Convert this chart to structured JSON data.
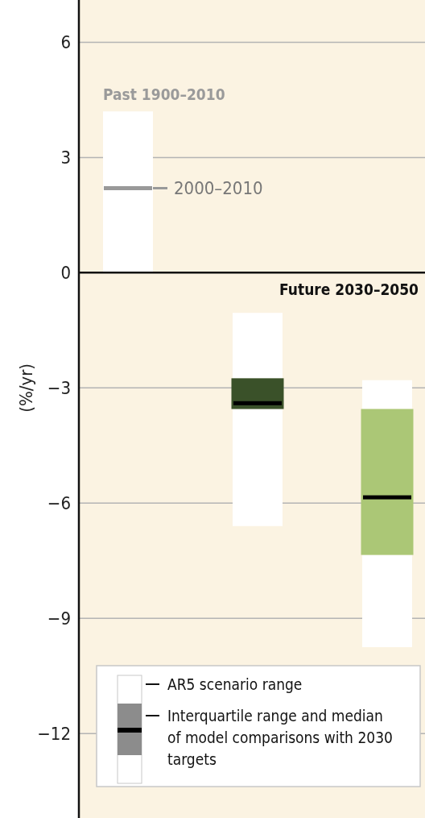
{
  "chart_data": {
    "type": "box",
    "ylabel": "(%/yr)",
    "categories": [
      null,
      null,
      null
    ],
    "boxes": [
      {
        "low": 0,
        "q1": 2.2,
        "median": 2.2,
        "q3": 2.2,
        "high": 4.2
      },
      {
        "low": -6.6,
        "q1": -3.55,
        "median": -3.4,
        "q3": -2.75,
        "high": -1.05
      },
      {
        "low": -9.75,
        "q1": -7.35,
        "median": -5.85,
        "q3": -3.55,
        "high": -2.8
      }
    ],
    "colors": [
      "#999999",
      "#3a5129",
      "#abc776"
    ],
    "ylim": [
      -14.2,
      7.1
    ],
    "yticks": [
      {
        "value": -12,
        "label": "−12"
      },
      {
        "value": -9,
        "label": "−9"
      },
      {
        "value": -6,
        "label": "−6"
      },
      {
        "value": -3,
        "label": "−3"
      },
      0,
      3,
      6
    ],
    "grid": "y",
    "annotations": [
      "Past 1900–2010",
      "2000–2010",
      "Future 2030–2050",
      "AR5 scenario range",
      "Interquartile range and median of model comparisons with 2030 targets"
    ]
  }
}
